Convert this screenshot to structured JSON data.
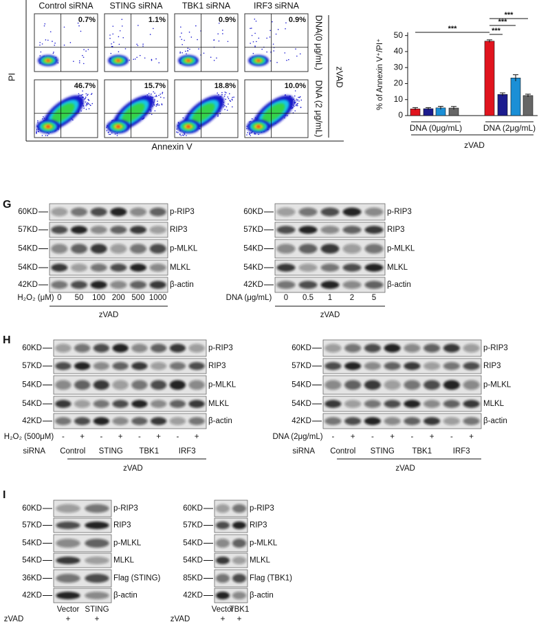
{
  "flow": {
    "columns": [
      "Control siRNA",
      "STING siRNA",
      "TBK1 siRNA",
      "IRF3 siRNA"
    ],
    "rows": [
      "DNA(0 μg/mL)",
      "DNA (2 μg/mL)"
    ],
    "side_label": "zVAD",
    "y_label": "PI",
    "x_label": "Annexin V",
    "percentages": [
      [
        "0.7%",
        "1.1%",
        "0.9%",
        "0.9%"
      ],
      [
        "46.7%",
        "15.7%",
        "18.8%",
        "10.0%"
      ]
    ]
  },
  "chart_data": {
    "type": "bar",
    "y_label": "% of Annexin V⁺/PI⁺",
    "categories": [
      null,
      null,
      null,
      null,
      null,
      null,
      null,
      null
    ],
    "values": [
      4.2,
      4.3,
      4.8,
      4.7,
      46.5,
      13.2,
      23.5,
      12.5
    ],
    "errors": [
      0.8,
      0.7,
      1.0,
      1.0,
      0.8,
      1.0,
      2.0,
      0.9
    ],
    "colors": [
      "#e0141e",
      "#1c1c8e",
      "#1b8fd6",
      "#666666",
      "#e0141e",
      "#1c1c8e",
      "#1b8fd6",
      "#666666"
    ],
    "ylim": [
      0,
      52
    ],
    "yticks": [
      0,
      10,
      20,
      30,
      40,
      50
    ],
    "group_labels": [
      "DNA (0μg/mL)",
      "DNA (2μg/mL)"
    ],
    "treatment_label": "zVAD",
    "annotations": [
      "***",
      "***",
      "***",
      "***"
    ]
  },
  "panel_g": {
    "letter": "G",
    "left": {
      "rows": [
        {
          "mw": "60KD",
          "label": "p-RIP3"
        },
        {
          "mw": "57KD",
          "label": "RIP3"
        },
        {
          "mw": "54KD",
          "label": "p-MLKL"
        },
        {
          "mw": "54KD",
          "label": "MLKL"
        },
        {
          "mw": "42KD",
          "label": "β-actin"
        }
      ],
      "treatment_label": "H₂O₂ (μM)",
      "lanes": [
        "0",
        "50",
        "100",
        "200",
        "500",
        "1000"
      ],
      "group_label": "zVAD"
    },
    "right": {
      "rows": [
        {
          "mw": "60KD",
          "label": "p-RIP3"
        },
        {
          "mw": "57KD",
          "label": "RIP3"
        },
        {
          "mw": "54KD",
          "label": "p-MLKL"
        },
        {
          "mw": "54KD",
          "label": "MLKL"
        },
        {
          "mw": "42KD",
          "label": "β-actin"
        }
      ],
      "treatment_label": "DNA (μg/mL)",
      "lanes": [
        "0",
        "0.5",
        "1",
        "2",
        "5"
      ],
      "group_label": "zVAD"
    }
  },
  "panel_h": {
    "letter": "H",
    "left": {
      "rows": [
        {
          "mw": "60KD",
          "label": "p-RIP3"
        },
        {
          "mw": "57KD",
          "label": "RIP3"
        },
        {
          "mw": "54KD",
          "label": "p-MLKL"
        },
        {
          "mw": "54KD",
          "label": "MLKL"
        },
        {
          "mw": "42KD",
          "label": "β-actin"
        }
      ],
      "treatment_label": "H₂O₂ (500μM)",
      "signs": [
        "-",
        "+",
        "-",
        "+",
        "-",
        "+",
        "-",
        "+"
      ],
      "sirna_label": "siRNA",
      "sirna_groups": [
        "Control",
        "STING",
        "TBK1",
        "IRF3"
      ],
      "group_label": "zVAD"
    },
    "right": {
      "rows": [
        {
          "mw": "60KD",
          "label": "p-RIP3"
        },
        {
          "mw": "57KD",
          "label": "RIP3"
        },
        {
          "mw": "54KD",
          "label": "p-MLKL"
        },
        {
          "mw": "54KD",
          "label": "MLKL"
        },
        {
          "mw": "42KD",
          "label": "β-actin"
        }
      ],
      "treatment_label": "DNA (2μg/mL)",
      "signs": [
        "-",
        "+",
        "-",
        "+",
        "-",
        "+",
        "-",
        "+"
      ],
      "sirna_label": "siRNA",
      "sirna_groups": [
        "Control",
        "STING",
        "TBK1",
        "IRF3"
      ],
      "group_label": "zVAD"
    }
  },
  "panel_i": {
    "letter": "I",
    "left": {
      "rows": [
        {
          "mw": "60KD",
          "label": "p-RIP3"
        },
        {
          "mw": "57KD",
          "label": "RIP3"
        },
        {
          "mw": "54KD",
          "label": "p-MLKL"
        },
        {
          "mw": "54KD",
          "label": "MLKL"
        },
        {
          "mw": "36KD",
          "label": "Flag (STING)"
        },
        {
          "mw": "42KD",
          "label": "β-actin"
        }
      ],
      "lanes": [
        "Vector",
        "STING"
      ],
      "treatment_label": "zVAD",
      "signs": [
        "+",
        "+"
      ]
    },
    "right": {
      "rows": [
        {
          "mw": "60KD",
          "label": "p-RIP3"
        },
        {
          "mw": "57KD",
          "label": "RIP3"
        },
        {
          "mw": "54KD",
          "label": "p-MLKL"
        },
        {
          "mw": "54KD",
          "label": "MLKL"
        },
        {
          "mw": "85KD",
          "label": "Flag (TBK1)"
        },
        {
          "mw": "42KD",
          "label": "β-actin"
        }
      ],
      "lanes": [
        "Vector",
        "TBK1"
      ],
      "treatment_label": "zVAD",
      "signs": [
        "+",
        "+"
      ]
    }
  }
}
